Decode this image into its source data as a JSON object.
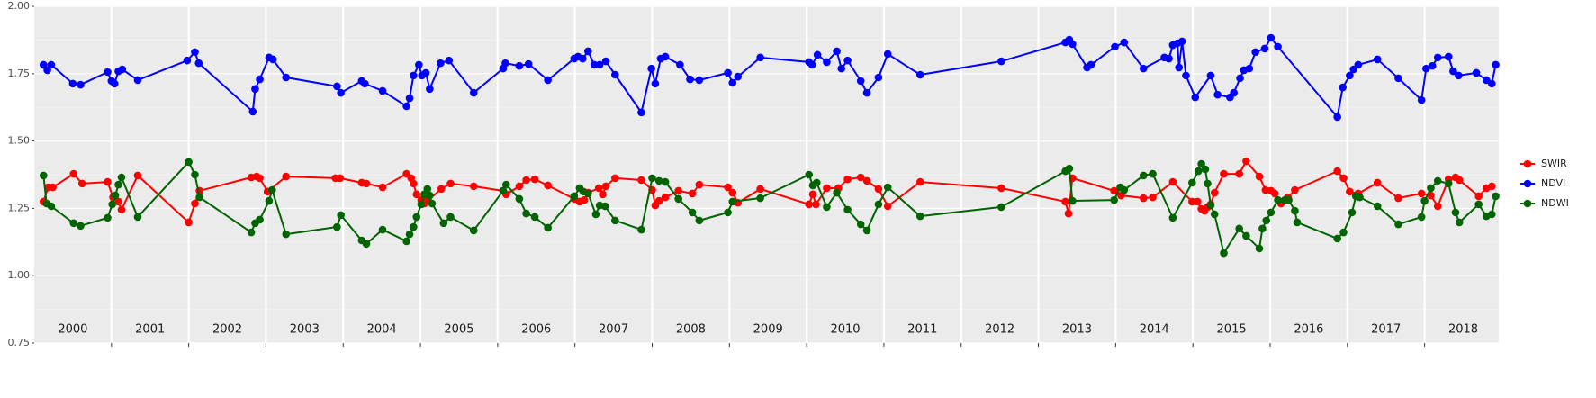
{
  "chart_data": {
    "type": "line",
    "xlim": [
      2000,
      2018.96
    ],
    "ylim": [
      0.75,
      2.0
    ],
    "yticks": [
      {
        "value": 0.75,
        "label": "0.75"
      },
      {
        "value": 1.0,
        "label": "1.00"
      },
      {
        "value": 1.25,
        "label": "1.25"
      },
      {
        "value": 1.5,
        "label": "1.50"
      },
      {
        "value": 1.75,
        "label": "1.75"
      },
      {
        "value": 2.0,
        "label": "2.00"
      }
    ],
    "xticks": [
      2001,
      2002,
      2003,
      2004,
      2005,
      2006,
      2007,
      2008,
      2009,
      2010,
      2011,
      2012,
      2013,
      2014,
      2015,
      2016,
      2017,
      2018
    ],
    "xlabels": [
      {
        "value": 2000.5,
        "label": "2000"
      },
      {
        "value": 2001.5,
        "label": "2001"
      },
      {
        "value": 2002.5,
        "label": "2002"
      },
      {
        "value": 2003.5,
        "label": "2003"
      },
      {
        "value": 2004.5,
        "label": "2004"
      },
      {
        "value": 2005.5,
        "label": "2005"
      },
      {
        "value": 2006.5,
        "label": "2006"
      },
      {
        "value": 2007.5,
        "label": "2007"
      },
      {
        "value": 2008.5,
        "label": "2008"
      },
      {
        "value": 2009.5,
        "label": "2009"
      },
      {
        "value": 2010.5,
        "label": "2010"
      },
      {
        "value": 2011.5,
        "label": "2011"
      },
      {
        "value": 2012.5,
        "label": "2012"
      },
      {
        "value": 2013.5,
        "label": "2013"
      },
      {
        "value": 2014.5,
        "label": "2014"
      },
      {
        "value": 2015.5,
        "label": "2015"
      },
      {
        "value": 2016.5,
        "label": "2016"
      },
      {
        "value": 2017.5,
        "label": "2017"
      },
      {
        "value": 2018.5,
        "label": "2018"
      }
    ],
    "grid": true,
    "legend": "right",
    "series": [
      {
        "name": "SWIR",
        "color": "#ff0000",
        "x": [
          2000.12,
          2000.18,
          2000.24,
          2000.51,
          2000.62,
          2000.95,
          2001.02,
          2001.09,
          2001.13,
          2001.34,
          2002.0,
          2002.08,
          2002.14,
          2002.81,
          2002.88,
          2002.92,
          2003.02,
          2003.26,
          2003.9,
          2003.96,
          2004.24,
          2004.3,
          2004.51,
          2004.82,
          2004.88,
          2004.91,
          2004.95,
          2005.01,
          2005.05,
          2005.09,
          2005.27,
          2005.39,
          2005.69,
          2006.07,
          2006.11,
          2006.28,
          2006.37,
          2006.48,
          2006.65,
          2006.99,
          2007.06,
          2007.12,
          2007.17,
          2007.31,
          2007.36,
          2007.4,
          2007.52,
          2007.86,
          2008.0,
          2008.04,
          2008.09,
          2008.17,
          2008.34,
          2008.52,
          2008.61,
          2008.98,
          2009.04,
          2009.11,
          2009.4,
          2010.03,
          2010.08,
          2010.12,
          2010.26,
          2010.41,
          2010.53,
          2010.7,
          2010.78,
          2010.93,
          2011.05,
          2011.47,
          2012.52,
          2013.35,
          2013.39,
          2013.44,
          2013.98,
          2014.07,
          2014.36,
          2014.48,
          2014.74,
          2014.99,
          2015.06,
          2015.11,
          2015.15,
          2015.19,
          2015.23,
          2015.28,
          2015.4,
          2015.6,
          2015.69,
          2015.86,
          2015.94,
          2016.01,
          2016.06,
          2016.14,
          2016.23,
          2016.32,
          2016.87,
          2016.95,
          2017.03,
          2017.14,
          2017.39,
          2017.66,
          2017.96,
          2018.08,
          2018.17,
          2018.31,
          2018.4,
          2018.45,
          2018.7,
          2018.8,
          2018.87
        ],
        "values": [
          1.275,
          1.328,
          1.328,
          1.378,
          1.342,
          1.348,
          1.291,
          1.275,
          1.245,
          1.372,
          1.198,
          1.268,
          1.315,
          1.365,
          1.368,
          1.362,
          1.312,
          1.368,
          1.362,
          1.362,
          1.345,
          1.342,
          1.328,
          1.378,
          1.362,
          1.342,
          1.302,
          1.281,
          1.268,
          1.278,
          1.322,
          1.342,
          1.332,
          1.315,
          1.302,
          1.332,
          1.355,
          1.358,
          1.335,
          1.285,
          1.275,
          1.281,
          1.308,
          1.325,
          1.302,
          1.332,
          1.362,
          1.355,
          1.318,
          1.261,
          1.278,
          1.291,
          1.315,
          1.305,
          1.338,
          1.328,
          1.308,
          1.271,
          1.322,
          1.265,
          1.302,
          1.265,
          1.325,
          1.325,
          1.358,
          1.365,
          1.352,
          1.322,
          1.258,
          1.348,
          1.325,
          1.275,
          1.231,
          1.362,
          1.315,
          1.298,
          1.288,
          1.291,
          1.348,
          1.275,
          1.275,
          1.248,
          1.241,
          1.255,
          1.265,
          1.308,
          1.378,
          1.378,
          1.425,
          1.368,
          1.318,
          1.315,
          1.305,
          1.268,
          1.291,
          1.318,
          1.388,
          1.362,
          1.312,
          1.305,
          1.345,
          1.288,
          1.305,
          1.298,
          1.258,
          1.358,
          1.365,
          1.355,
          1.295,
          1.325,
          1.332
        ]
      },
      {
        "name": "NDVI",
        "color": "#0000ff",
        "x": [
          2000.12,
          2000.17,
          2000.22,
          2000.5,
          2000.6,
          2000.95,
          2001.0,
          2001.04,
          2001.09,
          2001.14,
          2001.34,
          2001.98,
          2002.08,
          2002.13,
          2002.83,
          2002.86,
          2002.92,
          2003.04,
          2003.09,
          2003.26,
          2003.92,
          2003.97,
          2004.24,
          2004.28,
          2004.51,
          2004.82,
          2004.86,
          2004.91,
          2004.98,
          2005.02,
          2005.07,
          2005.12,
          2005.26,
          2005.37,
          2005.69,
          2006.07,
          2006.1,
          2006.28,
          2006.4,
          2006.65,
          2006.99,
          2007.04,
          2007.1,
          2007.17,
          2007.25,
          2007.32,
          2007.4,
          2007.52,
          2007.86,
          2007.99,
          2008.04,
          2008.11,
          2008.17,
          2008.36,
          2008.49,
          2008.61,
          2008.98,
          2009.04,
          2009.11,
          2009.4,
          2010.03,
          2010.07,
          2010.14,
          2010.26,
          2010.39,
          2010.45,
          2010.53,
          2010.7,
          2010.78,
          2010.93,
          2011.05,
          2011.47,
          2012.52,
          2013.35,
          2013.4,
          2013.44,
          2013.63,
          2013.68,
          2013.99,
          2014.11,
          2014.36,
          2014.63,
          2014.69,
          2014.74,
          2014.8,
          2014.82,
          2014.86,
          2014.91,
          2015.03,
          2015.23,
          2015.32,
          2015.48,
          2015.53,
          2015.61,
          2015.66,
          2015.73,
          2015.81,
          2015.93,
          2016.01,
          2016.1,
          2016.87,
          2016.94,
          2017.03,
          2017.08,
          2017.14,
          2017.39,
          2017.66,
          2017.96,
          2018.02,
          2018.1,
          2018.17,
          2018.31,
          2018.37,
          2018.44,
          2018.67,
          2018.8,
          2018.87,
          2018.92
        ],
        "values": [
          1.783,
          1.763,
          1.783,
          1.713,
          1.709,
          1.756,
          1.723,
          1.713,
          1.759,
          1.766,
          1.726,
          1.799,
          1.83,
          1.789,
          1.609,
          1.693,
          1.729,
          1.81,
          1.803,
          1.736,
          1.703,
          1.679,
          1.723,
          1.713,
          1.686,
          1.629,
          1.659,
          1.743,
          1.783,
          1.743,
          1.753,
          1.693,
          1.789,
          1.799,
          1.679,
          1.769,
          1.789,
          1.779,
          1.786,
          1.726,
          1.806,
          1.813,
          1.806,
          1.833,
          1.783,
          1.783,
          1.796,
          1.746,
          1.606,
          1.769,
          1.713,
          1.806,
          1.813,
          1.783,
          1.729,
          1.726,
          1.753,
          1.716,
          1.739,
          1.81,
          1.793,
          1.783,
          1.82,
          1.793,
          1.833,
          1.769,
          1.799,
          1.723,
          1.679,
          1.736,
          1.823,
          1.746,
          1.796,
          1.866,
          1.876,
          1.86,
          1.773,
          1.783,
          1.85,
          1.866,
          1.769,
          1.81,
          1.806,
          1.856,
          1.863,
          1.773,
          1.87,
          1.743,
          1.662,
          1.743,
          1.672,
          1.662,
          1.679,
          1.733,
          1.763,
          1.769,
          1.83,
          1.843,
          1.883,
          1.85,
          1.589,
          1.699,
          1.743,
          1.766,
          1.783,
          1.803,
          1.733,
          1.652,
          1.769,
          1.779,
          1.81,
          1.813,
          1.759,
          1.743,
          1.753,
          1.726,
          1.713,
          1.783
        ]
      },
      {
        "name": "NDWI",
        "color": "#006400",
        "x": [
          2000.12,
          2000.16,
          2000.22,
          2000.51,
          2000.6,
          2000.95,
          2001.01,
          2001.05,
          2001.09,
          2001.13,
          2001.34,
          2002.0,
          2002.08,
          2002.14,
          2002.81,
          2002.86,
          2002.92,
          2003.04,
          2003.08,
          2003.26,
          2003.92,
          2003.97,
          2004.24,
          2004.3,
          2004.51,
          2004.82,
          2004.86,
          2004.91,
          2004.95,
          2005.01,
          2005.05,
          2005.09,
          2005.12,
          2005.15,
          2005.3,
          2005.39,
          2005.69,
          2006.07,
          2006.11,
          2006.28,
          2006.37,
          2006.48,
          2006.65,
          2006.99,
          2007.06,
          2007.11,
          2007.17,
          2007.27,
          2007.32,
          2007.39,
          2007.52,
          2007.86,
          2008.0,
          2008.09,
          2008.17,
          2008.34,
          2008.52,
          2008.61,
          2008.98,
          2009.04,
          2009.4,
          2010.03,
          2010.08,
          2010.13,
          2010.26,
          2010.39,
          2010.53,
          2010.7,
          2010.78,
          2010.93,
          2011.05,
          2011.47,
          2012.52,
          2013.35,
          2013.4,
          2013.44,
          2013.98,
          2014.06,
          2014.11,
          2014.36,
          2014.48,
          2014.74,
          2014.99,
          2015.07,
          2015.11,
          2015.16,
          2015.19,
          2015.23,
          2015.28,
          2015.4,
          2015.6,
          2015.69,
          2015.86,
          2015.9,
          2015.95,
          2016.01,
          2016.1,
          2016.19,
          2016.24,
          2016.32,
          2016.35,
          2016.87,
          2016.95,
          2017.06,
          2017.11,
          2017.16,
          2017.39,
          2017.66,
          2017.96,
          2018.0,
          2018.08,
          2018.17,
          2018.31,
          2018.4,
          2018.45,
          2018.7,
          2018.8,
          2018.87,
          2018.92
        ],
        "values": [
          1.372,
          1.268,
          1.258,
          1.195,
          1.185,
          1.215,
          1.265,
          1.298,
          1.338,
          1.365,
          1.218,
          1.422,
          1.375,
          1.291,
          1.161,
          1.195,
          1.208,
          1.278,
          1.318,
          1.154,
          1.181,
          1.225,
          1.131,
          1.118,
          1.171,
          1.128,
          1.154,
          1.181,
          1.218,
          1.265,
          1.302,
          1.322,
          1.298,
          1.268,
          1.195,
          1.218,
          1.168,
          1.315,
          1.338,
          1.285,
          1.231,
          1.218,
          1.178,
          1.295,
          1.325,
          1.312,
          1.305,
          1.228,
          1.261,
          1.258,
          1.205,
          1.171,
          1.362,
          1.352,
          1.348,
          1.285,
          1.235,
          1.205,
          1.235,
          1.275,
          1.288,
          1.375,
          1.335,
          1.345,
          1.255,
          1.308,
          1.245,
          1.191,
          1.168,
          1.265,
          1.328,
          1.221,
          1.255,
          1.388,
          1.398,
          1.278,
          1.281,
          1.328,
          1.318,
          1.372,
          1.378,
          1.215,
          1.345,
          1.388,
          1.415,
          1.395,
          1.342,
          1.261,
          1.228,
          1.084,
          1.175,
          1.148,
          1.101,
          1.175,
          1.205,
          1.235,
          1.281,
          1.281,
          1.281,
          1.241,
          1.198,
          1.138,
          1.161,
          1.235,
          1.295,
          1.291,
          1.258,
          1.191,
          1.218,
          1.278,
          1.325,
          1.352,
          1.342,
          1.235,
          1.198,
          1.265,
          1.221,
          1.228,
          1.295
        ]
      }
    ]
  }
}
